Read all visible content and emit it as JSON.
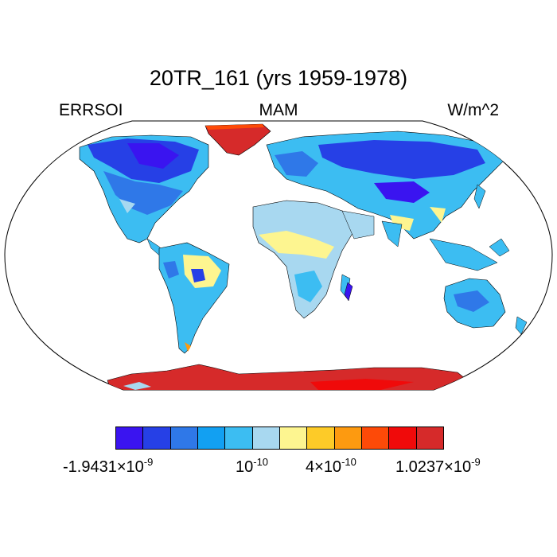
{
  "title": "20TR_161 (yrs 1959-1978)",
  "subtitle": {
    "left": "ERRSOI",
    "center": "MAM",
    "right": "W/m^2"
  },
  "colorbar": {
    "colors": [
      "#3a14f0",
      "#2640e6",
      "#2f78e8",
      "#12a0f2",
      "#3cbdf2",
      "#a8d8f0",
      "#fdf590",
      "#fdcb28",
      "#fd9a10",
      "#fd4a08",
      "#f00a0a",
      "#d62a2a"
    ],
    "labels": [
      {
        "mantissa": "-1.9431",
        "times": "×",
        "base": "10",
        "exp": "-9"
      },
      {
        "mantissa": "",
        "times": "",
        "base": "10",
        "exp": "-10"
      },
      {
        "mantissa": "4",
        "times": "×",
        "base": "10",
        "exp": "-10"
      },
      {
        "mantissa": "1.0237",
        "times": "×",
        "base": "10",
        "exp": "-9"
      }
    ]
  },
  "map": {
    "projection": "Robinson-like",
    "land_default": "#3cbdf2",
    "polar_ice": "#d62a2a",
    "ocean": "#ffffff"
  }
}
